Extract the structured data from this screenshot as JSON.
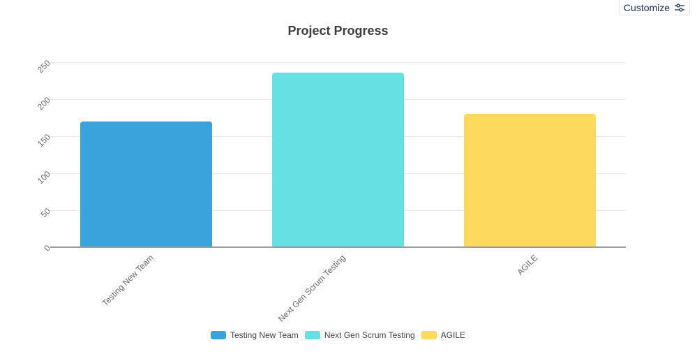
{
  "toolbar": {
    "customize_label": "Customize",
    "customize_icon": "sliders-icon"
  },
  "chart_data": {
    "type": "bar",
    "title": "Project Progress",
    "categories": [
      "Testing New Team",
      "Next Gen Scrum Testing",
      "AGILE"
    ],
    "values": [
      170,
      236,
      180
    ],
    "colors": [
      "#3aa3db",
      "#67e0e4",
      "#fdd95d"
    ],
    "xlabel": "",
    "ylabel": "",
    "ylim": [
      0,
      250
    ],
    "yticks": [
      "0",
      "50",
      "100",
      "150",
      "200",
      "250"
    ],
    "grid": true,
    "legend_position": "bottom",
    "legend": [
      "Testing New Team",
      "Next Gen Scrum Testing",
      "AGILE"
    ]
  }
}
